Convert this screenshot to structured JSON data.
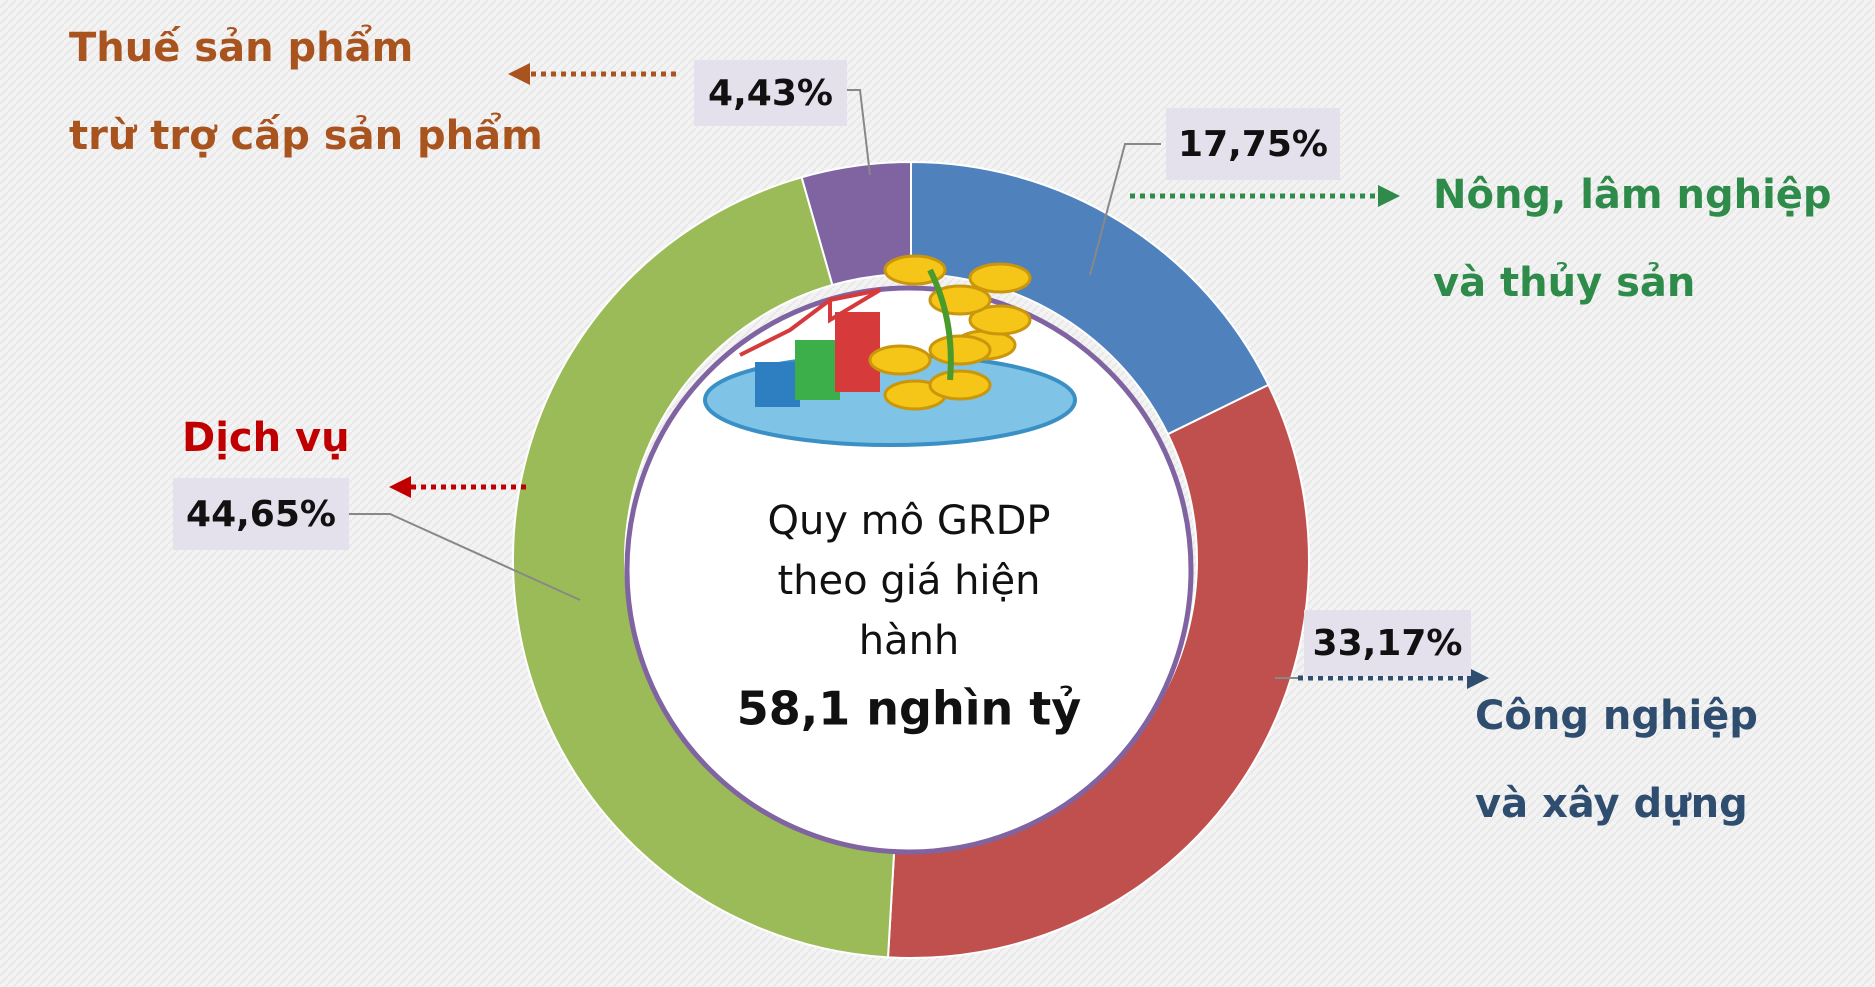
{
  "chart_data": {
    "type": "donut",
    "categories": [
      [
        "Nông, lâm nghiệp",
        "và thủy sản"
      ],
      [
        "Công nghiệp",
        "và xây dựng"
      ],
      [
        "Dịch vụ"
      ],
      [
        "Thuế sản phẩm",
        "trừ trợ cấp sản phẩm"
      ]
    ],
    "values": [
      17.75,
      33.17,
      44.65,
      4.43
    ],
    "value_labels": [
      "17,75%",
      "33,17%",
      "44,65%",
      "4,43%"
    ],
    "colors": [
      "#4f81bd",
      "#c0504d",
      "#9bbb59",
      "#8064a2"
    ],
    "label_colors": [
      "#2e8b4a",
      "#2f4d6e",
      "#c00000",
      "#a9541f"
    ],
    "center_text": [
      "Quy mô GRDP",
      "theo giá hiện",
      "hành"
    ],
    "center_value": "58,1 nghìn tỷ"
  }
}
